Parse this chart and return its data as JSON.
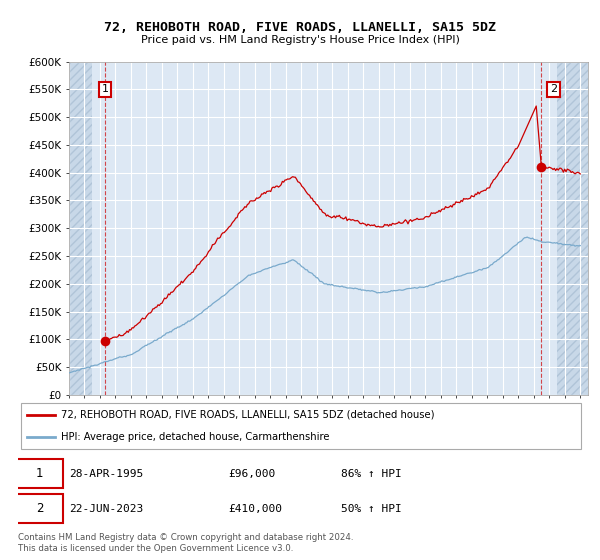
{
  "title": "72, REHOBOTH ROAD, FIVE ROADS, LLANELLI, SA15 5DZ",
  "subtitle": "Price paid vs. HM Land Registry's House Price Index (HPI)",
  "ylabel_ticks": [
    "£0",
    "£50K",
    "£100K",
    "£150K",
    "£200K",
    "£250K",
    "£300K",
    "£350K",
    "£400K",
    "£450K",
    "£500K",
    "£550K",
    "£600K"
  ],
  "ytick_values": [
    0,
    50000,
    100000,
    150000,
    200000,
    250000,
    300000,
    350000,
    400000,
    450000,
    500000,
    550000,
    600000
  ],
  "xmin": 1993.0,
  "xmax": 2026.5,
  "ymin": 0,
  "ymax": 600000,
  "transaction1": {
    "date_num": 1995.32,
    "price": 96000,
    "label": "1",
    "pct": "86% ↑ HPI",
    "date_str": "28-APR-1995",
    "price_str": "£96,000"
  },
  "transaction2": {
    "date_num": 2023.47,
    "price": 410000,
    "label": "2",
    "pct": "50% ↑ HPI",
    "date_str": "22-JUN-2023",
    "price_str": "£410,000"
  },
  "legend_line1": "72, REHOBOTH ROAD, FIVE ROADS, LLANELLI, SA15 5DZ (detached house)",
  "legend_line2": "HPI: Average price, detached house, Carmarthenshire",
  "footnote": "Contains HM Land Registry data © Crown copyright and database right 2024.\nThis data is licensed under the Open Government Licence v3.0.",
  "line_color_red": "#cc0000",
  "line_color_blue": "#7aaacc",
  "bg_chart": "#dde8f4",
  "bg_hatch_outside": "#c8d8e8",
  "grid_color": "#ffffff",
  "annotation_box_color": "#cc0000",
  "hatch_left_end": 1994.5,
  "hatch_right_start": 2024.5
}
